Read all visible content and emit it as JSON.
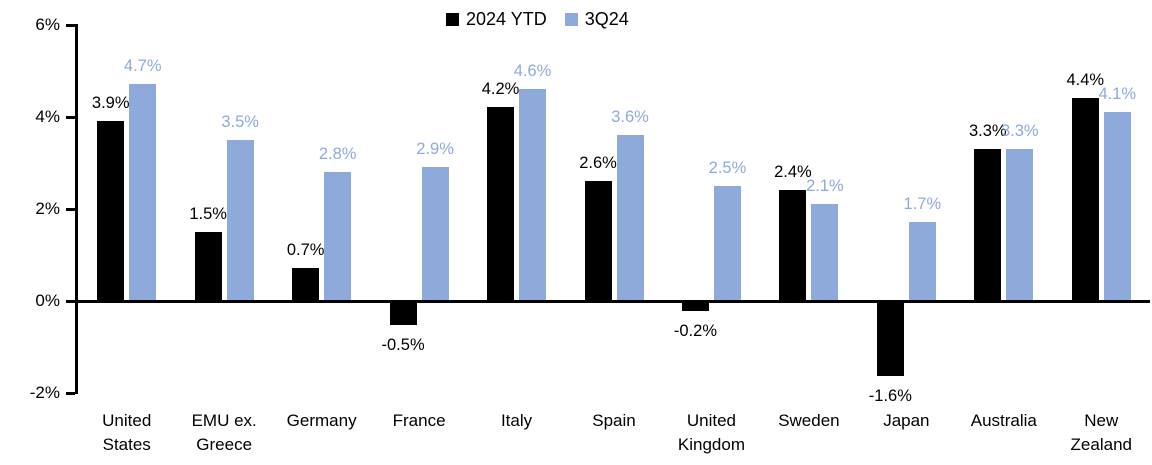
{
  "chart_data": {
    "type": "bar",
    "title": "",
    "categories": [
      "United States",
      "EMU ex. Greece",
      "Germany",
      "France",
      "Italy",
      "Spain",
      "United Kingdom",
      "Sweden",
      "Japan",
      "Australia",
      "New Zealand"
    ],
    "series": [
      {
        "name": "2024 YTD",
        "color": "#000000",
        "values": [
          3.9,
          1.5,
          0.7,
          -0.5,
          4.2,
          2.6,
          -0.2,
          2.4,
          -1.6,
          3.3,
          4.4
        ]
      },
      {
        "name": "3Q24",
        "color": "#8EAADB",
        "values": [
          4.7,
          3.5,
          2.8,
          2.9,
          4.6,
          3.6,
          2.5,
          2.1,
          1.7,
          3.3,
          4.1
        ]
      }
    ],
    "y_ticks": [
      6,
      4,
      2,
      0,
      -2
    ],
    "ylim": [
      -2,
      6
    ],
    "label_suffix": "%",
    "legend_position": "top-center",
    "grid": false,
    "background": "#FFFFFF",
    "axis_color": "#000000"
  }
}
